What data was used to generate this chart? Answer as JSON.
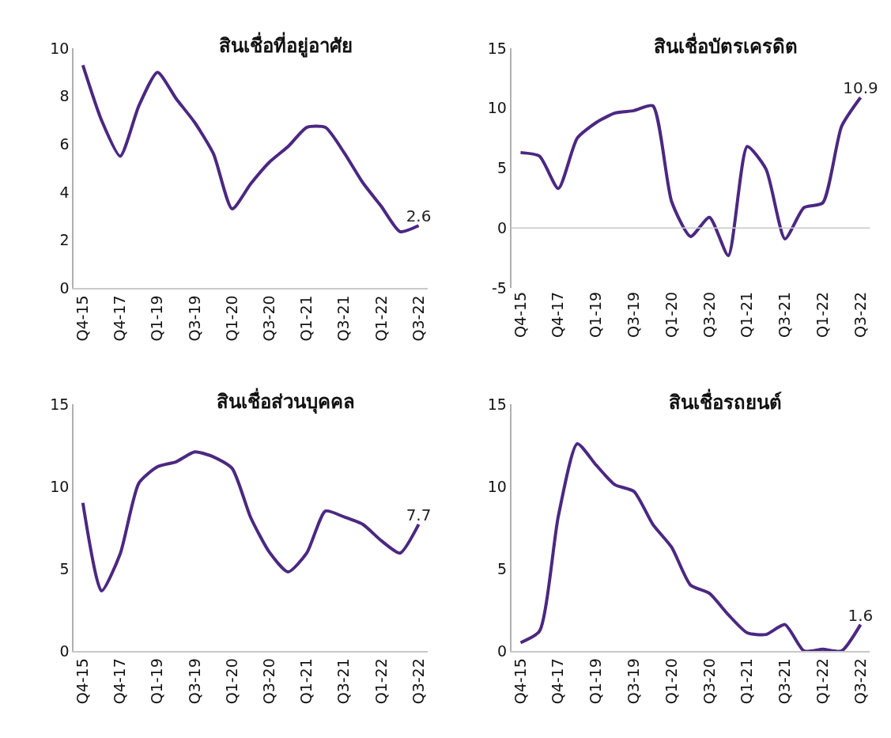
{
  "chart_data": [
    {
      "type": "line",
      "title": "สินเชื่อที่อยู่อาศัย",
      "categories": [
        "Q4-15",
        null,
        "Q4-17",
        null,
        "Q1-19",
        null,
        "Q3-19",
        null,
        "Q1-20",
        null,
        "Q3-20",
        null,
        "Q1-21",
        null,
        "Q3-21",
        null,
        "Q1-22",
        null,
        "Q3-22"
      ],
      "values": [
        9.3,
        7.0,
        5.5,
        7.6,
        9.0,
        7.9,
        6.9,
        5.6,
        3.3,
        4.35,
        5.25,
        5.9,
        6.7,
        6.7,
        5.65,
        4.4,
        3.4,
        2.35,
        2.6
      ],
      "value_labels": [
        null,
        null,
        null,
        null,
        null,
        null,
        null,
        null,
        null,
        null,
        null,
        null,
        null,
        null,
        null,
        null,
        null,
        null,
        "2.6"
      ],
      "color": "#4b2882",
      "ylim": [
        0,
        10
      ],
      "yticks": [
        0,
        2,
        4,
        6,
        8,
        10
      ]
    },
    {
      "type": "line",
      "title": "สินเชื่อบัตรเครดิต",
      "categories": [
        "Q4-15",
        null,
        "Q4-17",
        null,
        "Q1-19",
        null,
        "Q3-19",
        null,
        "Q1-20",
        null,
        "Q3-20",
        null,
        "Q1-21",
        null,
        "Q3-21",
        null,
        "Q1-22",
        null,
        "Q3-22"
      ],
      "values": [
        6.3,
        6.0,
        3.3,
        7.5,
        8.8,
        9.6,
        9.8,
        10.2,
        2.2,
        -0.7,
        0.9,
        -2.3,
        6.8,
        4.9,
        -0.9,
        1.7,
        2.1,
        8.5,
        10.9
      ],
      "value_labels": [
        null,
        null,
        null,
        null,
        null,
        null,
        null,
        null,
        null,
        null,
        null,
        null,
        null,
        null,
        null,
        null,
        null,
        null,
        "10.9"
      ],
      "color": "#4b2882",
      "ylim": [
        -5,
        15
      ],
      "yticks": [
        -5,
        0,
        5,
        10,
        15
      ],
      "ref_lines": [
        {
          "axis": "y",
          "value": 0,
          "color": "#c8c8c8"
        }
      ]
    },
    {
      "type": "line",
      "title": "สินเชื่อส่วนบุคคล",
      "categories": [
        "Q4-15",
        null,
        "Q4-17",
        null,
        "Q1-19",
        null,
        "Q3-19",
        null,
        "Q1-20",
        null,
        "Q3-20",
        null,
        "Q1-21",
        null,
        "Q3-21",
        null,
        "Q1-22",
        null,
        "Q3-22"
      ],
      "values": [
        9.0,
        3.65,
        5.9,
        10.2,
        11.2,
        11.5,
        12.1,
        11.8,
        11.1,
        8.1,
        6.0,
        4.8,
        5.95,
        8.5,
        8.15,
        7.7,
        6.7,
        5.95,
        7.7
      ],
      "value_labels": [
        null,
        null,
        null,
        null,
        null,
        null,
        null,
        null,
        null,
        null,
        null,
        null,
        null,
        null,
        null,
        null,
        null,
        null,
        "7.7"
      ],
      "color": "#4b2882",
      "ylim": [
        0,
        15
      ],
      "yticks": [
        0,
        5,
        10,
        15
      ]
    },
    {
      "type": "line",
      "title": "สินเชื่อรถยนต์",
      "categories": [
        "Q4-15",
        null,
        "Q4-17",
        null,
        "Q1-19",
        null,
        "Q3-19",
        null,
        "Q1-20",
        null,
        "Q3-20",
        null,
        "Q1-21",
        null,
        "Q3-21",
        null,
        "Q1-22",
        null,
        "Q3-22"
      ],
      "values": [
        0.5,
        1.2,
        8.2,
        12.6,
        11.3,
        10.1,
        9.7,
        7.7,
        6.3,
        4.0,
        3.5,
        2.2,
        1.1,
        1.0,
        1.6,
        0.0,
        0.1,
        0.0,
        1.6
      ],
      "value_labels": [
        null,
        null,
        null,
        null,
        null,
        null,
        null,
        null,
        null,
        null,
        null,
        null,
        null,
        null,
        null,
        null,
        null,
        null,
        "1.6"
      ],
      "color": "#4b2882",
      "ylim": [
        0,
        15
      ],
      "yticks": [
        0,
        5,
        10,
        15
      ]
    }
  ]
}
